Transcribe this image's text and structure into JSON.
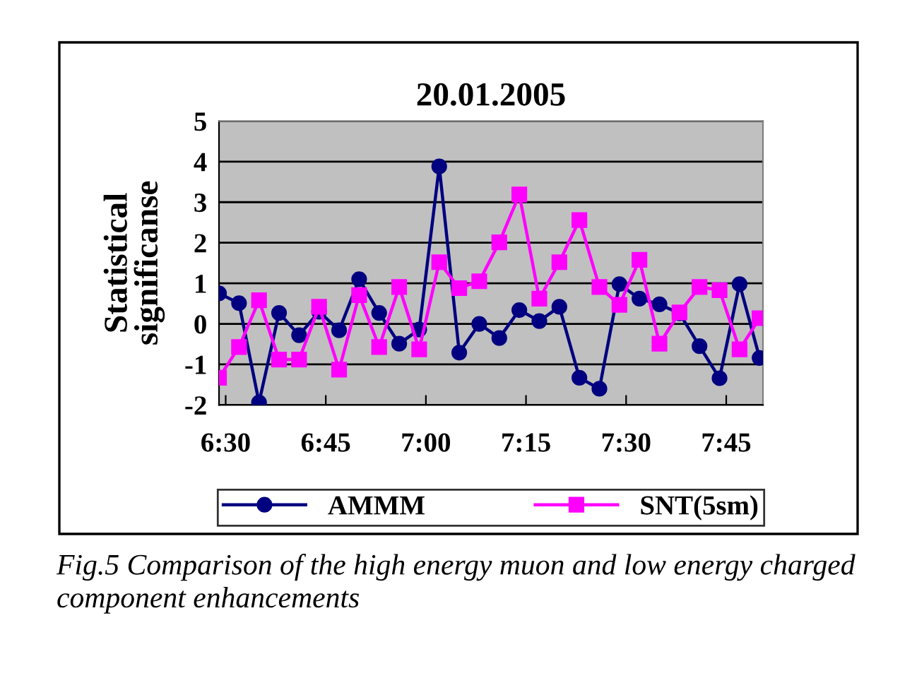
{
  "chart_data": {
    "type": "line",
    "title": "20.01.2005",
    "ylabel": "Statistical\nsignificanse",
    "x": [
      6.4833,
      6.5333,
      6.5833,
      6.6333,
      6.6833,
      6.7333,
      6.7833,
      6.8333,
      6.8833,
      6.9333,
      6.9833,
      7.0333,
      7.0833,
      7.1333,
      7.1833,
      7.2333,
      7.2833,
      7.3333,
      7.3833,
      7.4333,
      7.4833,
      7.5333,
      7.5833,
      7.6333,
      7.6833,
      7.7333,
      7.7833,
      7.8333
    ],
    "series": [
      {
        "name": "AMMM",
        "color": "#000080",
        "marker": "circle",
        "values": [
          0.75,
          0.51,
          -1.94,
          0.27,
          -0.28,
          0.3,
          -0.16,
          1.1,
          0.27,
          -0.49,
          -0.14,
          3.88,
          -0.71,
          0.0,
          -0.35,
          0.34,
          0.07,
          0.42,
          -1.33,
          -1.6,
          0.98,
          0.62,
          0.48,
          0.26,
          -0.55,
          -1.34,
          0.98,
          -0.84
        ]
      },
      {
        "name": "SNT(5sm)",
        "color": "#ff00ff",
        "marker": "square",
        "values": [
          -1.33,
          -0.57,
          0.58,
          -0.88,
          -0.88,
          0.42,
          -1.13,
          0.71,
          -0.57,
          0.91,
          -0.63,
          1.52,
          0.88,
          1.05,
          2.01,
          3.19,
          0.62,
          1.52,
          2.56,
          0.91,
          0.47,
          1.58,
          -0.49,
          0.28,
          0.91,
          0.83,
          -0.63,
          0.14
        ]
      }
    ],
    "xlim": [
      6.4833,
      7.8417
    ],
    "xticks": [
      {
        "value": 6.5,
        "label": "6:30"
      },
      {
        "value": 6.75,
        "label": "6:45"
      },
      {
        "value": 7.0,
        "label": "7:00"
      },
      {
        "value": 7.25,
        "label": "7:15"
      },
      {
        "value": 7.5,
        "label": "7:30"
      },
      {
        "value": 7.75,
        "label": "7:45"
      }
    ],
    "ylim": [
      -2,
      5
    ],
    "yticks": [
      -2,
      -1,
      0,
      1,
      2,
      3,
      4,
      5
    ],
    "grid": "y",
    "legend": "bottom",
    "annotations": [
      "Fig.5 Comparison of the high energy muon and low energy charged component enhancements"
    ]
  }
}
